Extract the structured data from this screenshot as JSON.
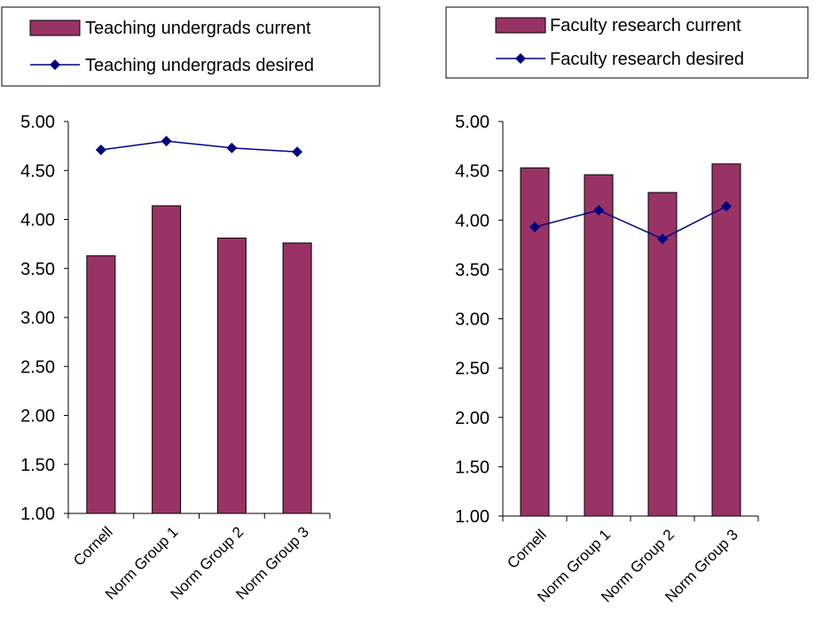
{
  "chart_data": [
    {
      "type": "bar",
      "categories": [
        "Cornell",
        "Norm Group 1",
        "Norm Group 2",
        "Norm Group 3"
      ],
      "series": [
        {
          "name": "Teaching undergrads current",
          "kind": "bar",
          "values": [
            3.63,
            4.14,
            3.81,
            3.76
          ],
          "color": "#993366"
        },
        {
          "name": "Teaching undergrads desired",
          "kind": "line",
          "values": [
            4.71,
            4.8,
            4.73,
            4.69
          ],
          "color": "#000080",
          "marker": "diamond"
        }
      ],
      "yticks": [
        "1.00",
        "1.50",
        "2.00",
        "2.50",
        "3.00",
        "3.50",
        "4.00",
        "4.50",
        "5.00"
      ],
      "ylim": [
        1,
        5
      ],
      "legend_position": "top",
      "grid": false
    },
    {
      "type": "bar",
      "categories": [
        "Cornell",
        "Norm Group 1",
        "Norm Group 2",
        "Norm Group 3"
      ],
      "series": [
        {
          "name": "Faculty research current",
          "kind": "bar",
          "values": [
            4.53,
            4.46,
            4.28,
            4.57
          ],
          "color": "#993366"
        },
        {
          "name": "Faculty research desired",
          "kind": "line",
          "values": [
            3.93,
            4.1,
            3.81,
            4.14
          ],
          "color": "#000080",
          "marker": "diamond"
        }
      ],
      "yticks": [
        "1.00",
        "1.50",
        "2.00",
        "2.50",
        "3.00",
        "3.50",
        "4.00",
        "4.50",
        "5.00"
      ],
      "ylim": [
        1,
        5
      ],
      "legend_position": "top",
      "grid": false
    }
  ]
}
